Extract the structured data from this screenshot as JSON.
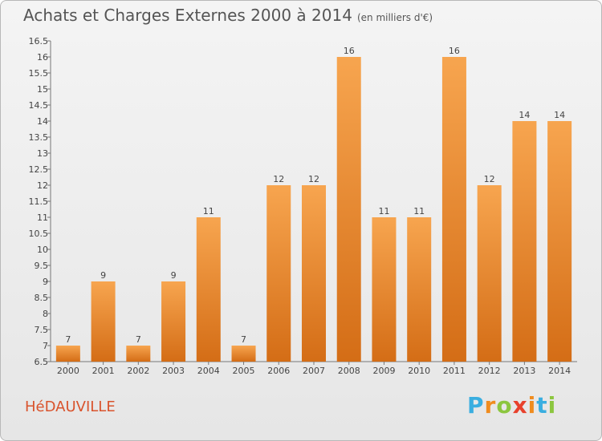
{
  "chart_data": {
    "type": "bar",
    "title": "Achats et Charges Externes 2000 à 2014",
    "subtitle": "(en milliers d'€)",
    "categories": [
      "2000",
      "2001",
      "2002",
      "2003",
      "2004",
      "2005",
      "2006",
      "2007",
      "2008",
      "2009",
      "2010",
      "2011",
      "2012",
      "2013",
      "2014"
    ],
    "values": [
      7,
      9,
      7,
      9,
      11,
      7,
      12,
      12,
      16,
      11,
      11,
      16,
      12,
      14,
      14
    ],
    "ylim": [
      6.5,
      16.5
    ],
    "yticks": [
      "6.5",
      "7",
      "7.5",
      "8",
      "8.5",
      "9",
      "9.5",
      "10",
      "10.5",
      "11",
      "11.5",
      "12",
      "12.5",
      "13",
      "13.5",
      "14",
      "14.5",
      "15",
      "15.5",
      "16",
      "16.5"
    ],
    "xlabel": "",
    "ylabel": "",
    "grid": false,
    "colors": {
      "bar_light": "#f7a54f",
      "bar_dark": "#d46d16"
    }
  },
  "commune": "HéDAUVILLE",
  "logo": {
    "letters": [
      "P",
      "r",
      "o",
      "x",
      "i",
      "t",
      "i"
    ],
    "colors": [
      "#3aaee0",
      "#f08c1e",
      "#8cc63f",
      "#e8412c",
      "#f08c1e",
      "#3aaee0",
      "#8cc63f"
    ]
  }
}
